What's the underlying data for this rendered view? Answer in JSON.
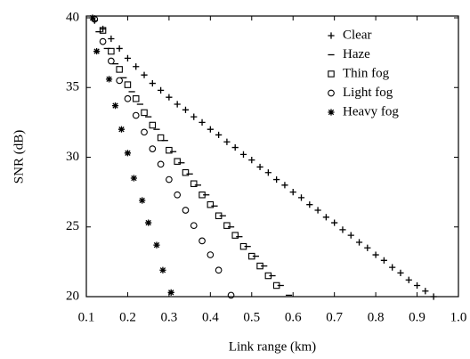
{
  "chart_data": {
    "type": "scatter",
    "x_label": "Link range (km)",
    "y_label": "SNR (dB)",
    "xlim": [
      0.1,
      1.0
    ],
    "ylim": [
      20,
      40
    ],
    "xticks": [
      0.1,
      0.2,
      0.3,
      0.4,
      0.5,
      0.6,
      0.7,
      0.8,
      0.9,
      {
        "value": 1,
        "label": "1.0"
      }
    ],
    "yticks": [
      20,
      25,
      30,
      35,
      40
    ],
    "legend": "upper right",
    "series": [
      {
        "name": "Clear",
        "marker": "plus",
        "color": "#000000",
        "x": [
          0.12,
          0.14,
          0.16,
          0.18,
          0.2,
          0.22,
          0.24,
          0.26,
          0.28,
          0.3,
          0.32,
          0.34,
          0.36,
          0.38,
          0.4,
          0.42,
          0.44,
          0.46,
          0.48,
          0.5,
          0.52,
          0.54,
          0.56,
          0.58,
          0.6,
          0.62,
          0.64,
          0.66,
          0.68,
          0.7,
          0.72,
          0.74,
          0.76,
          0.78,
          0.8,
          0.82,
          0.84,
          0.86,
          0.88,
          0.9,
          0.92,
          0.94
        ],
        "values": [
          39.8,
          39.2,
          38.5,
          37.8,
          37.1,
          36.5,
          35.9,
          35.3,
          34.8,
          34.3,
          33.8,
          33.4,
          32.9,
          32.5,
          32.0,
          31.6,
          31.1,
          30.7,
          30.2,
          29.8,
          29.3,
          28.9,
          28.4,
          28.0,
          27.5,
          27.1,
          26.6,
          26.2,
          25.7,
          25.3,
          24.8,
          24.4,
          23.9,
          23.5,
          23.0,
          22.6,
          22.1,
          21.7,
          21.2,
          20.8,
          20.4,
          20.0
        ]
      },
      {
        "name": "Haze",
        "marker": "dash",
        "color": "#000000",
        "x": [
          0.13,
          0.15,
          0.17,
          0.19,
          0.21,
          0.23,
          0.25,
          0.27,
          0.29,
          0.31,
          0.33,
          0.35,
          0.37,
          0.39,
          0.41,
          0.43,
          0.45,
          0.47,
          0.49,
          0.51,
          0.53,
          0.55,
          0.57,
          0.59
        ],
        "values": [
          39.0,
          37.8,
          36.7,
          35.7,
          34.7,
          33.8,
          32.9,
          32.0,
          31.2,
          30.4,
          29.6,
          28.8,
          28.0,
          27.3,
          26.5,
          25.8,
          25.0,
          24.3,
          23.6,
          22.9,
          22.2,
          21.5,
          20.8,
          20.1
        ]
      },
      {
        "name": "Thin fog",
        "marker": "square",
        "color": "#000000",
        "x": [
          0.14,
          0.16,
          0.18,
          0.2,
          0.22,
          0.24,
          0.26,
          0.28,
          0.3,
          0.32,
          0.34,
          0.36,
          0.38,
          0.4,
          0.42,
          0.44,
          0.46,
          0.48,
          0.5,
          0.52,
          0.54,
          0.56
        ],
        "values": [
          39.1,
          37.6,
          36.3,
          35.2,
          34.2,
          33.2,
          32.3,
          31.4,
          30.5,
          29.7,
          28.9,
          28.1,
          27.3,
          26.6,
          25.8,
          25.1,
          24.4,
          23.6,
          22.9,
          22.2,
          21.5,
          20.8
        ]
      },
      {
        "name": "Light fog",
        "marker": "circle",
        "color": "#000000",
        "x": [
          0.12,
          0.14,
          0.16,
          0.18,
          0.2,
          0.22,
          0.24,
          0.26,
          0.28,
          0.3,
          0.32,
          0.34,
          0.36,
          0.38,
          0.4,
          0.42,
          0.45
        ],
        "values": [
          39.9,
          38.3,
          36.9,
          35.5,
          34.2,
          33.0,
          31.8,
          30.6,
          29.5,
          28.4,
          27.3,
          26.2,
          25.1,
          24.0,
          23.0,
          21.9,
          20.1
        ]
      },
      {
        "name": "Heavy fog",
        "marker": "asterisk",
        "color": "#000000",
        "x": [
          0.115,
          0.125,
          0.155,
          0.17,
          0.185,
          0.2,
          0.215,
          0.235,
          0.25,
          0.27,
          0.285,
          0.305
        ],
        "values": [
          40.0,
          37.6,
          35.6,
          33.7,
          32.0,
          30.3,
          28.5,
          26.9,
          25.3,
          23.7,
          21.9,
          20.3
        ]
      }
    ]
  }
}
